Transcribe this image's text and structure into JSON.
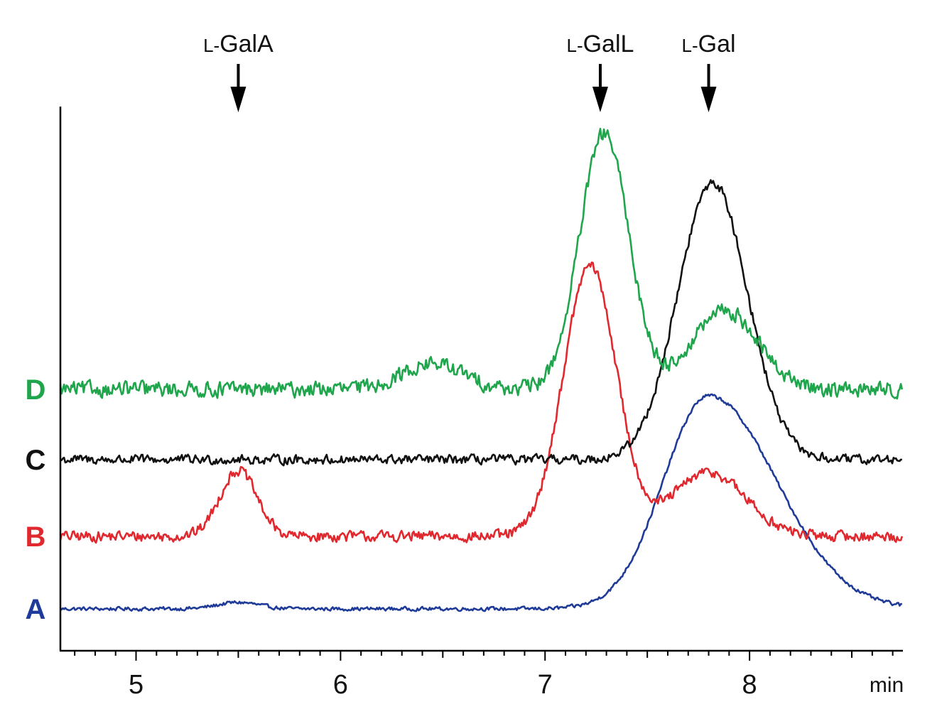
{
  "chart_data": {
    "type": "line",
    "xlabel": "",
    "ylabel": "",
    "x_unit_label": "min",
    "xlim": [
      4.63,
      8.75
    ],
    "x_ticks": [
      {
        "value": 5,
        "label": "5"
      },
      {
        "value": 6,
        "label": "6"
      },
      {
        "value": 7,
        "label": "7"
      },
      {
        "value": 8,
        "label": "8"
      }
    ],
    "grid": false,
    "legend": "left, labels at each trace baseline",
    "annotations": [
      {
        "label_prefix": "L-",
        "label_main": "GalA",
        "x": 5.5
      },
      {
        "label_prefix": "L-",
        "label_main": "GalL",
        "x": 7.27
      },
      {
        "label_prefix": "L-",
        "label_main": "Gal",
        "x": 7.8
      }
    ],
    "series": [
      {
        "name": "A",
        "color": "#1f3b99",
        "baseline": 0,
        "noise": 0.012,
        "peaks": [
          {
            "x": 5.5,
            "h": 0.03,
            "w": 0.1
          },
          {
            "x": 7.8,
            "h": 1.0,
            "w": 0.22,
            "skew": 1.5
          }
        ]
      },
      {
        "name": "B",
        "color": "#e0282e",
        "baseline": 0.34,
        "noise": 0.035,
        "peaks": [
          {
            "x": 5.5,
            "h": 0.31,
            "w": 0.09
          },
          {
            "x": 7.22,
            "h": 1.27,
            "w": 0.13
          },
          {
            "x": 7.8,
            "h": 0.3,
            "w": 0.18
          }
        ]
      },
      {
        "name": "C",
        "color": "#111111",
        "baseline": 0.7,
        "noise": 0.03,
        "peaks": [
          {
            "x": 7.82,
            "h": 1.3,
            "w": 0.17
          }
        ]
      },
      {
        "name": "D",
        "color": "#1fa54b",
        "baseline": 1.03,
        "noise": 0.05,
        "peaks": [
          {
            "x": 6.45,
            "h": 0.12,
            "w": 0.15
          },
          {
            "x": 7.29,
            "h": 1.2,
            "w": 0.12
          },
          {
            "x": 7.88,
            "h": 0.37,
            "w": 0.16
          }
        ]
      }
    ]
  }
}
